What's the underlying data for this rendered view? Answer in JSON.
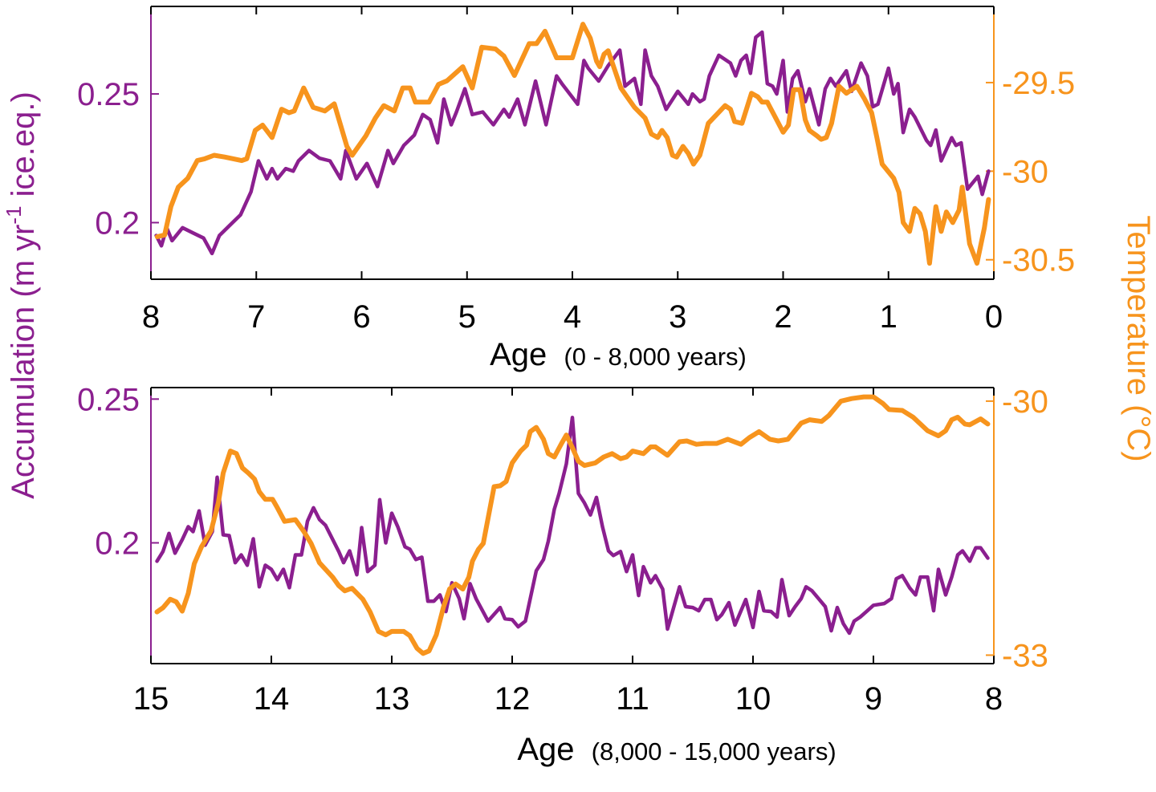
{
  "colors": {
    "accumulation": "#8B1F8F",
    "temperature": "#F7941D",
    "axis": "#000000"
  },
  "left_ylabel": {
    "prefix": "Accumulation (m yr",
    "sup": "-1",
    "suffix": " ice.eq.)"
  },
  "right_ylabel": "Temperature (°C)",
  "chart_data": [
    {
      "type": "line",
      "xlabel_main": "Age",
      "xlabel_range": "(0 - 8,000 years)",
      "xlim": [
        8,
        0
      ],
      "xticks": [
        8,
        7,
        6,
        5,
        4,
        3,
        2,
        1,
        0
      ],
      "ylim_left": [
        0.178,
        0.284
      ],
      "yticks_left": [
        {
          "v": 0.2,
          "label": "0.2"
        },
        {
          "v": 0.25,
          "label": "0.25"
        }
      ],
      "ylim_right": [
        -30.61,
        -29.07
      ],
      "yticks_right": [
        {
          "v": -29.5,
          "label": "-29.5"
        },
        {
          "v": -30,
          "label": "-30"
        },
        {
          "v": -30.5,
          "label": "-30.5"
        }
      ],
      "grid": false,
      "series": [
        {
          "axis": "left",
          "color": "#8B1F8F",
          "x": [
            7.95,
            7.9,
            7.85,
            7.8,
            7.7,
            7.6,
            7.5,
            7.42,
            7.35,
            7.25,
            7.15,
            7.05,
            6.98,
            6.9,
            6.85,
            6.8,
            6.72,
            6.65,
            6.6,
            6.5,
            6.4,
            6.3,
            6.2,
            6.15,
            6.05,
            5.95,
            5.85,
            5.75,
            5.7,
            5.6,
            5.5,
            5.42,
            5.35,
            5.28,
            5.22,
            5.15,
            5.1,
            5.02,
            4.95,
            4.85,
            4.75,
            4.65,
            4.6,
            4.52,
            4.45,
            4.35,
            4.25,
            4.15,
            4.1,
            3.95,
            3.89,
            3.85,
            3.75,
            3.66,
            3.55,
            3.5,
            3.41,
            3.35,
            3.31,
            3.25,
            3.19,
            3.11,
            3.0,
            2.9,
            2.86,
            2.79,
            2.75,
            2.7,
            2.61,
            2.5,
            2.45,
            2.4,
            2.35,
            2.31,
            2.26,
            2.2,
            2.15,
            2.1,
            2.06,
            2.0,
            1.96,
            1.91,
            1.86,
            1.79,
            1.75,
            1.66,
            1.6,
            1.55,
            1.5,
            1.4,
            1.35,
            1.26,
            1.2,
            1.15,
            1.1,
            1.0,
            0.95,
            0.91,
            0.86,
            0.8,
            0.75,
            0.64,
            0.6,
            0.55,
            0.5,
            0.4,
            0.36,
            0.31,
            0.25,
            0.15,
            0.11,
            0.05
          ],
          "y": [
            0.195,
            0.191,
            0.198,
            0.193,
            0.198,
            0.196,
            0.194,
            0.188,
            0.195,
            0.199,
            0.203,
            0.212,
            0.224,
            0.217,
            0.221,
            0.217,
            0.221,
            0.22,
            0.224,
            0.228,
            0.225,
            0.224,
            0.217,
            0.228,
            0.217,
            0.223,
            0.214,
            0.228,
            0.223,
            0.23,
            0.234,
            0.242,
            0.24,
            0.231,
            0.248,
            0.238,
            0.243,
            0.252,
            0.242,
            0.243,
            0.238,
            0.244,
            0.241,
            0.248,
            0.238,
            0.255,
            0.238,
            0.257,
            0.254,
            0.246,
            0.263,
            0.26,
            0.255,
            0.261,
            0.267,
            0.253,
            0.256,
            0.246,
            0.267,
            0.257,
            0.253,
            0.244,
            0.251,
            0.246,
            0.25,
            0.247,
            0.248,
            0.257,
            0.265,
            0.262,
            0.257,
            0.263,
            0.265,
            0.258,
            0.272,
            0.274,
            0.254,
            0.253,
            0.25,
            0.263,
            0.243,
            0.256,
            0.259,
            0.247,
            0.252,
            0.238,
            0.252,
            0.256,
            0.253,
            0.259,
            0.251,
            0.262,
            0.257,
            0.245,
            0.246,
            0.26,
            0.25,
            0.254,
            0.235,
            0.244,
            0.241,
            0.232,
            0.23,
            0.236,
            0.224,
            0.233,
            0.23,
            0.231,
            0.213,
            0.218,
            0.211,
            0.22
          ]
        },
        {
          "axis": "right",
          "color": "#F7941D",
          "x": [
            7.94,
            7.87,
            7.81,
            7.74,
            7.65,
            7.56,
            7.49,
            7.4,
            7.3,
            7.14,
            7.09,
            7.01,
            6.94,
            6.85,
            6.76,
            6.69,
            6.64,
            6.55,
            6.46,
            6.35,
            6.26,
            6.14,
            6.09,
            5.96,
            5.87,
            5.79,
            5.69,
            5.61,
            5.54,
            5.49,
            5.36,
            5.27,
            5.19,
            5.04,
            4.95,
            4.86,
            4.73,
            4.65,
            4.55,
            4.41,
            4.34,
            4.26,
            4.15,
            4.06,
            4.0,
            3.9,
            3.83,
            3.77,
            3.74,
            3.7,
            3.66,
            3.54,
            3.47,
            3.41,
            3.31,
            3.25,
            3.19,
            3.15,
            3.1,
            3.05,
            3.01,
            2.95,
            2.9,
            2.85,
            2.79,
            2.71,
            2.63,
            2.55,
            2.5,
            2.46,
            2.39,
            2.3,
            2.24,
            2.2,
            2.15,
            2.07,
            2.0,
            1.95,
            1.9,
            1.84,
            1.79,
            1.75,
            1.68,
            1.64,
            1.59,
            1.54,
            1.47,
            1.4,
            1.3,
            1.23,
            1.16,
            1.11,
            1.06,
            0.95,
            0.9,
            0.86,
            0.8,
            0.75,
            0.7,
            0.65,
            0.61,
            0.55,
            0.5,
            0.45,
            0.39,
            0.33,
            0.3,
            0.23,
            0.16,
            0.09,
            0.05
          ],
          "y": [
            -30.37,
            -30.36,
            -30.2,
            -30.09,
            -30.04,
            -29.94,
            -29.93,
            -29.91,
            -29.92,
            -29.94,
            -29.93,
            -29.77,
            -29.74,
            -29.81,
            -29.65,
            -29.67,
            -29.66,
            -29.53,
            -29.64,
            -29.66,
            -29.62,
            -29.86,
            -29.91,
            -29.8,
            -29.7,
            -29.63,
            -29.66,
            -29.53,
            -29.53,
            -29.61,
            -29.61,
            -29.51,
            -29.49,
            -29.41,
            -29.53,
            -29.3,
            -29.31,
            -29.35,
            -29.46,
            -29.28,
            -29.28,
            -29.21,
            -29.36,
            -29.36,
            -29.36,
            -29.17,
            -29.25,
            -29.38,
            -29.41,
            -29.34,
            -29.32,
            -29.53,
            -29.59,
            -29.64,
            -29.7,
            -29.79,
            -29.81,
            -29.77,
            -29.81,
            -29.91,
            -29.92,
            -29.86,
            -29.9,
            -29.96,
            -29.91,
            -29.73,
            -29.68,
            -29.63,
            -29.65,
            -29.72,
            -29.73,
            -29.56,
            -29.58,
            -29.61,
            -29.61,
            -29.7,
            -29.78,
            -29.74,
            -29.54,
            -29.54,
            -29.71,
            -29.77,
            -29.8,
            -29.82,
            -29.81,
            -29.73,
            -29.52,
            -29.56,
            -29.52,
            -29.59,
            -29.67,
            -29.81,
            -29.96,
            -30.04,
            -30.12,
            -30.29,
            -30.34,
            -30.21,
            -30.24,
            -30.34,
            -30.52,
            -30.2,
            -30.34,
            -30.23,
            -30.29,
            -30.22,
            -30.09,
            -30.41,
            -30.52,
            -30.32,
            -30.16
          ]
        }
      ]
    },
    {
      "type": "line",
      "xlabel_main": "Age",
      "xlabel_range": "(8,000 - 15,000 years)",
      "xlim": [
        15,
        8
      ],
      "xticks": [
        15,
        14,
        13,
        12,
        11,
        10,
        9,
        8
      ],
      "ylim_left": [
        0.158,
        0.254
      ],
      "yticks_left": [
        {
          "v": 0.2,
          "label": "0.2"
        },
        {
          "v": 0.25,
          "label": "0.25"
        }
      ],
      "ylim_right": [
        -33.1,
        -29.84
      ],
      "yticks_right": [
        {
          "v": -30,
          "label": "-30"
        },
        {
          "v": -33,
          "label": "-33"
        }
      ],
      "grid": false,
      "series": [
        {
          "axis": "left",
          "color": "#8B1F8F",
          "x": [
            14.95,
            14.9,
            14.85,
            14.8,
            14.74,
            14.69,
            14.65,
            14.6,
            14.55,
            14.49,
            14.45,
            14.4,
            14.35,
            14.3,
            14.25,
            14.2,
            14.15,
            14.1,
            14.05,
            14.0,
            13.95,
            13.9,
            13.85,
            13.8,
            13.75,
            13.7,
            13.65,
            13.6,
            13.55,
            13.44,
            13.4,
            13.35,
            13.29,
            13.25,
            13.2,
            13.14,
            13.1,
            13.05,
            13.0,
            12.95,
            12.89,
            12.85,
            12.8,
            12.75,
            12.7,
            12.65,
            12.6,
            12.55,
            12.5,
            12.44,
            12.4,
            12.35,
            12.3,
            12.2,
            12.1,
            12.06,
            12.0,
            11.95,
            11.89,
            11.8,
            11.74,
            11.7,
            11.65,
            11.61,
            11.55,
            11.5,
            11.45,
            11.4,
            11.35,
            11.3,
            11.25,
            11.2,
            11.16,
            11.1,
            11.05,
            11.0,
            10.95,
            10.91,
            10.85,
            10.81,
            10.75,
            10.71,
            10.61,
            10.56,
            10.5,
            10.45,
            10.4,
            10.35,
            10.3,
            10.26,
            10.2,
            10.15,
            10.06,
            10.0,
            9.95,
            9.91,
            9.85,
            9.8,
            9.76,
            9.7,
            9.65,
            9.6,
            9.56,
            9.51,
            9.4,
            9.35,
            9.3,
            9.25,
            9.2,
            9.16,
            9.11,
            9.05,
            9.0,
            8.91,
            8.85,
            8.81,
            8.76,
            8.7,
            8.65,
            8.61,
            8.55,
            8.5,
            8.46,
            8.4,
            8.35,
            8.3,
            8.26,
            8.2,
            8.15,
            8.11,
            8.05
          ],
          "y": [
            0.1936,
            0.197,
            0.2033,
            0.1964,
            0.2011,
            0.2056,
            0.2039,
            0.2111,
            0.1992,
            0.2039,
            0.2228,
            0.2028,
            0.2025,
            0.1931,
            0.1958,
            0.1922,
            0.2014,
            0.1847,
            0.1922,
            0.1908,
            0.1872,
            0.1908,
            0.1844,
            0.1958,
            0.1958,
            0.2075,
            0.2122,
            0.2081,
            0.2061,
            0.197,
            0.1931,
            0.1972,
            0.1889,
            0.2053,
            0.19,
            0.1922,
            0.215,
            0.2,
            0.2103,
            0.2056,
            0.1986,
            0.1978,
            0.1942,
            0.195,
            0.1797,
            0.1797,
            0.1819,
            0.1761,
            0.1861,
            0.1806,
            0.1736,
            0.1858,
            0.1806,
            0.1728,
            0.1775,
            0.1736,
            0.1733,
            0.1708,
            0.1728,
            0.1903,
            0.1942,
            0.2006,
            0.2117,
            0.2172,
            0.2275,
            0.2436,
            0.2172,
            0.2139,
            0.2097,
            0.2158,
            0.2056,
            0.1972,
            0.1956,
            0.197,
            0.19,
            0.1958,
            0.1817,
            0.1917,
            0.1861,
            0.1886,
            0.1839,
            0.17,
            0.1847,
            0.1778,
            0.1775,
            0.1764,
            0.1803,
            0.1803,
            0.1733,
            0.175,
            0.1792,
            0.1714,
            0.1803,
            0.1706,
            0.1831,
            0.1764,
            0.1761,
            0.1742,
            0.1872,
            0.1747,
            0.1778,
            0.1806,
            0.1847,
            0.1833,
            0.1778,
            0.1694,
            0.1775,
            0.1719,
            0.1686,
            0.1728,
            0.1742,
            0.1764,
            0.1783,
            0.1789,
            0.1806,
            0.1875,
            0.1886,
            0.1844,
            0.1819,
            0.1881,
            0.1881,
            0.1764,
            0.1908,
            0.1819,
            0.1881,
            0.1958,
            0.1972,
            0.1936,
            0.1983,
            0.1983,
            0.1947
          ]
        },
        {
          "axis": "right",
          "color": "#F7941D",
          "x": [
            14.95,
            14.9,
            14.84,
            14.79,
            14.74,
            14.69,
            14.64,
            14.58,
            14.5,
            14.44,
            14.4,
            14.34,
            14.29,
            14.24,
            14.19,
            14.14,
            14.1,
            14.05,
            13.99,
            13.95,
            13.89,
            13.8,
            13.73,
            13.67,
            13.6,
            13.49,
            13.44,
            13.39,
            13.33,
            13.24,
            13.18,
            13.11,
            13.05,
            13.0,
            12.9,
            12.85,
            12.79,
            12.74,
            12.69,
            12.63,
            12.57,
            12.52,
            12.47,
            12.41,
            12.36,
            12.33,
            12.28,
            12.24,
            12.15,
            12.1,
            12.05,
            12.0,
            11.93,
            11.88,
            11.85,
            11.8,
            11.74,
            11.7,
            11.65,
            11.59,
            11.55,
            11.5,
            11.45,
            11.4,
            11.31,
            11.24,
            11.17,
            11.1,
            11.05,
            11.0,
            10.91,
            10.85,
            10.81,
            10.71,
            10.61,
            10.55,
            10.47,
            10.4,
            10.3,
            10.21,
            10.1,
            10.03,
            9.95,
            9.86,
            9.79,
            9.71,
            9.6,
            9.53,
            9.43,
            9.37,
            9.27,
            9.18,
            9.08,
            9.0,
            8.92,
            8.87,
            8.76,
            8.67,
            8.55,
            8.46,
            8.4,
            8.35,
            8.3,
            8.24,
            8.2,
            8.11,
            8.05
          ],
          "y": [
            -32.49,
            -32.44,
            -32.34,
            -32.37,
            -32.48,
            -32.27,
            -31.92,
            -31.72,
            -31.53,
            -31.2,
            -30.85,
            -30.59,
            -30.62,
            -30.79,
            -30.85,
            -30.92,
            -31.07,
            -31.16,
            -31.16,
            -31.26,
            -31.42,
            -31.4,
            -31.54,
            -31.68,
            -31.91,
            -32.08,
            -32.18,
            -32.24,
            -32.21,
            -32.34,
            -32.49,
            -32.72,
            -32.76,
            -32.72,
            -32.72,
            -32.77,
            -32.92,
            -32.98,
            -32.95,
            -32.76,
            -32.43,
            -32.22,
            -32.16,
            -32.22,
            -32.08,
            -31.89,
            -31.75,
            -31.68,
            -31.01,
            -31.0,
            -30.95,
            -30.73,
            -30.59,
            -30.52,
            -30.36,
            -30.31,
            -30.45,
            -30.62,
            -30.66,
            -30.5,
            -30.4,
            -30.55,
            -30.71,
            -30.76,
            -30.73,
            -30.66,
            -30.62,
            -30.68,
            -30.66,
            -30.59,
            -30.62,
            -30.54,
            -30.54,
            -30.64,
            -30.48,
            -30.47,
            -30.51,
            -30.5,
            -30.5,
            -30.45,
            -30.51,
            -30.43,
            -30.36,
            -30.45,
            -30.47,
            -30.45,
            -30.26,
            -30.22,
            -30.24,
            -30.17,
            -30.0,
            -29.97,
            -29.95,
            -29.95,
            -30.03,
            -30.1,
            -30.11,
            -30.19,
            -30.35,
            -30.41,
            -30.35,
            -30.22,
            -30.19,
            -30.27,
            -30.28,
            -30.21,
            -30.27
          ]
        }
      ]
    }
  ]
}
